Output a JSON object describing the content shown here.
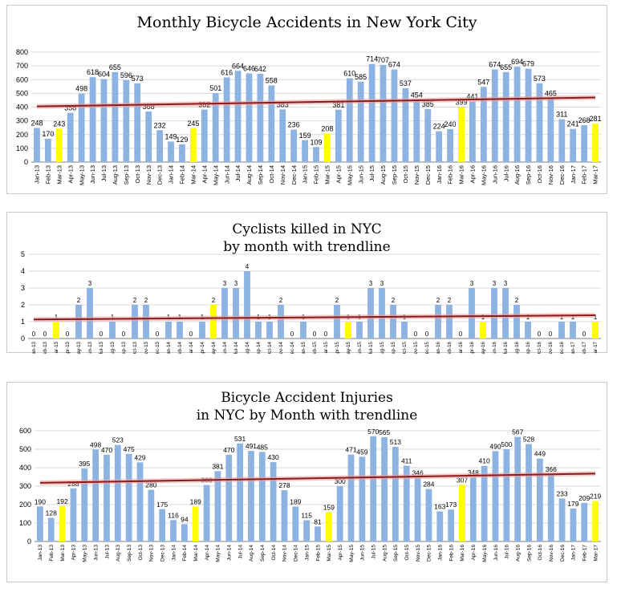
{
  "colors": {
    "bar": "#8db3e2",
    "highlight": "#ffff00",
    "trend": "#8b1a1a",
    "trend_band": "#e7a5a5"
  },
  "chart_data": [
    {
      "type": "bar",
      "title_lines": [
        "Monthly Bicycle Accidents in New York City"
      ],
      "categories": [
        "Jan-13",
        "Feb-13",
        "Mar-13",
        "Apr-13",
        "May-13",
        "Jun-13",
        "Jul-13",
        "Aug-13",
        "Sep-13",
        "Oct-13",
        "Nov-13",
        "Dec-13",
        "Jan-14",
        "Feb-14",
        "Mar-14",
        "Apr-14",
        "May-14",
        "Jun-14",
        "Jul-14",
        "Aug-14",
        "Sep-14",
        "Oct-14",
        "Nov-14",
        "Dec-14",
        "Jan-15",
        "Feb-15",
        "Mar-15",
        "Apr-15",
        "May-15",
        "Jun-15",
        "Jul-15",
        "Aug-15",
        "Sep-15",
        "Oct-15",
        "Nov-15",
        "Dec-15",
        "Jan-16",
        "Feb-16",
        "Mar-16",
        "Apr-16",
        "May-16",
        "Jun-16",
        "Jul-16",
        "Aug-16",
        "Sep-16",
        "Oct-16",
        "Nov-16",
        "Dec-16",
        "Jan-17",
        "Feb-17",
        "Mar-17"
      ],
      "values": [
        248,
        170,
        243,
        358,
        498,
        618,
        604,
        655,
        596,
        573,
        368,
        232,
        149,
        129,
        245,
        382,
        501,
        616,
        664,
        646,
        642,
        558,
        383,
        236,
        159,
        109,
        208,
        381,
        610,
        585,
        714,
        707,
        674,
        537,
        454,
        385,
        224,
        240,
        399,
        441,
        547,
        674,
        655,
        694,
        679,
        573,
        465,
        311,
        241,
        268,
        281
      ],
      "highlight_indices": [
        2,
        14,
        26,
        38,
        50
      ],
      "ylim": [
        0,
        800
      ],
      "yticks": [
        0,
        100,
        200,
        300,
        400,
        500,
        600,
        700,
        800
      ],
      "trendline": {
        "start": 405,
        "end": 470
      },
      "grid": true
    },
    {
      "type": "bar",
      "title_lines": [
        "Cyclists killed in NYC",
        "by month with trendline"
      ],
      "categories": [
        "Jan-13",
        "Feb-13",
        "Mar-13",
        "Apr-13",
        "May-13",
        "Jun-13",
        "Jul-13",
        "Aug-13",
        "Sep-13",
        "Oct-13",
        "Nov-13",
        "Dec-13",
        "Jan-14",
        "Feb-14",
        "Mar-14",
        "Apr-14",
        "May-14",
        "Jun-14",
        "Jul-14",
        "Aug-14",
        "Sep-14",
        "Oct-14",
        "Nov-14",
        "Dec-14",
        "Jan-15",
        "Feb-15",
        "Mar-15",
        "Apr-15",
        "May-15",
        "Jun-15",
        "Jul-15",
        "Aug-15",
        "Sep-15",
        "Oct-15",
        "Nov-15",
        "Dec-15",
        "Jan-16",
        "Feb-16",
        "Mar-16",
        "Apr-16",
        "May-16",
        "Jun-16",
        "Jul-16",
        "Aug-16",
        "Sep-16",
        "Oct-16",
        "Nov-16",
        "Dec-16",
        "Jan-17",
        "Feb-17",
        "Mar-17"
      ],
      "values": [
        0,
        0,
        1,
        0,
        2,
        3,
        0,
        1,
        0,
        2,
        2,
        0,
        1,
        1,
        0,
        1,
        2,
        3,
        3,
        4,
        1,
        1,
        2,
        0,
        1,
        0,
        0,
        2,
        1,
        1,
        3,
        3,
        2,
        1,
        0,
        0,
        2,
        2,
        0,
        3,
        1,
        3,
        3,
        2,
        1,
        0,
        0,
        1,
        1,
        0,
        1
      ],
      "highlight_indices": [
        2,
        16,
        28,
        40,
        50
      ],
      "ylim": [
        0,
        5
      ],
      "yticks": [
        0,
        1,
        2,
        3,
        4,
        5
      ],
      "trendline": {
        "start": 1.13,
        "end": 1.38
      },
      "grid": true
    },
    {
      "type": "bar",
      "title_lines": [
        "Bicycle Accident Injuries",
        "in NYC by Month with trendline"
      ],
      "categories": [
        "Jan-13",
        "Feb-13",
        "Mar-13",
        "Apr-13",
        "May-13",
        "Jun-13",
        "Jul-13",
        "Aug-13",
        "Sep-13",
        "Oct-13",
        "Nov-13",
        "Dec-13",
        "Jan-14",
        "Feb-14",
        "Mar-14",
        "Apr-14",
        "May-14",
        "Jun-14",
        "Jul-14",
        "Aug-14",
        "Sep-14",
        "Oct-14",
        "Nov-14",
        "Dec-14",
        "Jan-15",
        "Feb-15",
        "Mar-15",
        "Apr-15",
        "May-15",
        "Jun-15",
        "Jul-15",
        "Aug-15",
        "Sep-15",
        "Oct-15",
        "Nov-15",
        "Dec-15",
        "Jan-16",
        "Feb-16",
        "Mar-16",
        "Apr-16",
        "May-16",
        "Jun-16",
        "Jul-16",
        "Aug-16",
        "Sep-16",
        "Oct-16",
        "Nov-16",
        "Dec-16",
        "Jan-17",
        "Feb-17",
        "Mar-17"
      ],
      "values": [
        190,
        128,
        192,
        288,
        395,
        498,
        470,
        523,
        475,
        429,
        280,
        175,
        116,
        94,
        189,
        306,
        381,
        470,
        531,
        491,
        485,
        430,
        278,
        189,
        115,
        81,
        159,
        300,
        471,
        459,
        570,
        565,
        513,
        411,
        346,
        284,
        163,
        173,
        307,
        348,
        410,
        490,
        500,
        567,
        528,
        449,
        366,
        233,
        179,
        209,
        219
      ],
      "highlight_indices": [
        2,
        14,
        26,
        38,
        50
      ],
      "ylim": [
        0,
        600
      ],
      "yticks": [
        0,
        100,
        200,
        300,
        400,
        500,
        600
      ],
      "trendline": {
        "start": 318,
        "end": 368
      },
      "grid": true
    }
  ]
}
